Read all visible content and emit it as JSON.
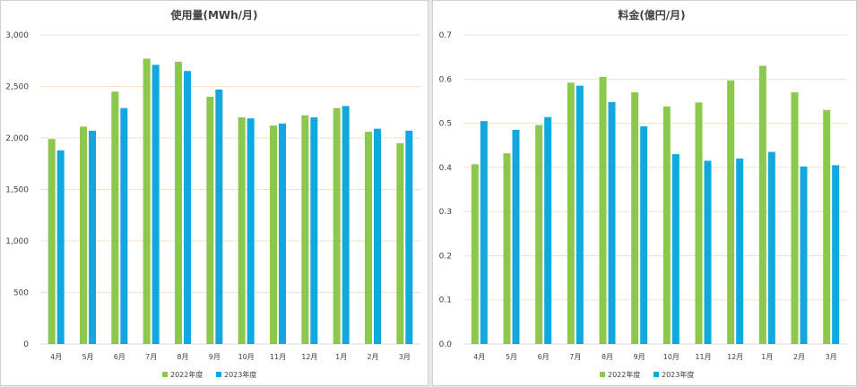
{
  "charts": [
    {
      "type": "bar",
      "title": "使用量(MWh/月)",
      "categories": [
        "4月",
        "5月",
        "6月",
        "7月",
        "8月",
        "9月",
        "10月",
        "11月",
        "12月",
        "1月",
        "2月",
        "3月"
      ],
      "ylim": [
        0,
        3000
      ],
      "yticks": [
        "0",
        "500",
        "1,000",
        "1,500",
        "2,000",
        "2,500",
        "3,000"
      ],
      "ytick_values": [
        0,
        500,
        1000,
        1500,
        2000,
        2500,
        3000
      ],
      "grid": true,
      "legend": "bottom",
      "series": [
        {
          "name": "2022年度",
          "color": "#8cc84b",
          "values": [
            1990,
            2110,
            2450,
            2770,
            2740,
            2400,
            2200,
            2120,
            2220,
            2290,
            2060,
            1950
          ]
        },
        {
          "name": "2023年度",
          "color": "#11a8e0",
          "values": [
            1880,
            2070,
            2290,
            2710,
            2650,
            2470,
            2190,
            2140,
            2200,
            2310,
            2090,
            2070
          ]
        }
      ]
    },
    {
      "type": "bar",
      "title": "料金(億円/月)",
      "categories": [
        "4月",
        "5月",
        "6月",
        "7月",
        "8月",
        "9月",
        "10月",
        "11月",
        "12月",
        "1月",
        "2月",
        "3月"
      ],
      "ylim": [
        0,
        0.7
      ],
      "yticks": [
        "0.0",
        "0.1",
        "0.2",
        "0.3",
        "0.4",
        "0.5",
        "0.6",
        "0.7"
      ],
      "ytick_values": [
        0,
        0.1,
        0.2,
        0.3,
        0.4,
        0.5,
        0.6,
        0.7
      ],
      "grid": true,
      "legend": "bottom",
      "series": [
        {
          "name": "2022年度",
          "color": "#8cc84b",
          "values": [
            0.407,
            0.432,
            0.496,
            0.592,
            0.605,
            0.57,
            0.538,
            0.547,
            0.597,
            0.63,
            0.57,
            0.53
          ]
        },
        {
          "name": "2023年度",
          "color": "#11a8e0",
          "values": [
            0.505,
            0.485,
            0.514,
            0.585,
            0.548,
            0.493,
            0.43,
            0.415,
            0.42,
            0.435,
            0.402,
            0.405
          ]
        }
      ]
    }
  ],
  "chart_data": [
    {
      "type": "bar",
      "title": "使用量(MWh/月)",
      "categories": [
        "4月",
        "5月",
        "6月",
        "7月",
        "8月",
        "9月",
        "10月",
        "11月",
        "12月",
        "1月",
        "2月",
        "3月"
      ],
      "ylim": [
        0,
        3000
      ],
      "series": [
        {
          "name": "2022年度",
          "values": [
            1990,
            2110,
            2450,
            2770,
            2740,
            2400,
            2200,
            2120,
            2220,
            2290,
            2060,
            1950
          ]
        },
        {
          "name": "2023年度",
          "values": [
            1880,
            2070,
            2290,
            2710,
            2650,
            2470,
            2190,
            2140,
            2200,
            2310,
            2090,
            2070
          ]
        }
      ]
    },
    {
      "type": "bar",
      "title": "料金(億円/月)",
      "categories": [
        "4月",
        "5月",
        "6月",
        "7月",
        "8月",
        "9月",
        "10月",
        "11月",
        "12月",
        "1月",
        "2月",
        "3月"
      ],
      "ylim": [
        0,
        0.7
      ],
      "series": [
        {
          "name": "2022年度",
          "values": [
            0.407,
            0.432,
            0.496,
            0.592,
            0.605,
            0.57,
            0.538,
            0.547,
            0.597,
            0.63,
            0.57,
            0.53
          ]
        },
        {
          "name": "2023年度",
          "values": [
            0.505,
            0.485,
            0.514,
            0.585,
            0.548,
            0.493,
            0.43,
            0.415,
            0.42,
            0.435,
            0.402,
            0.405
          ]
        }
      ]
    }
  ]
}
